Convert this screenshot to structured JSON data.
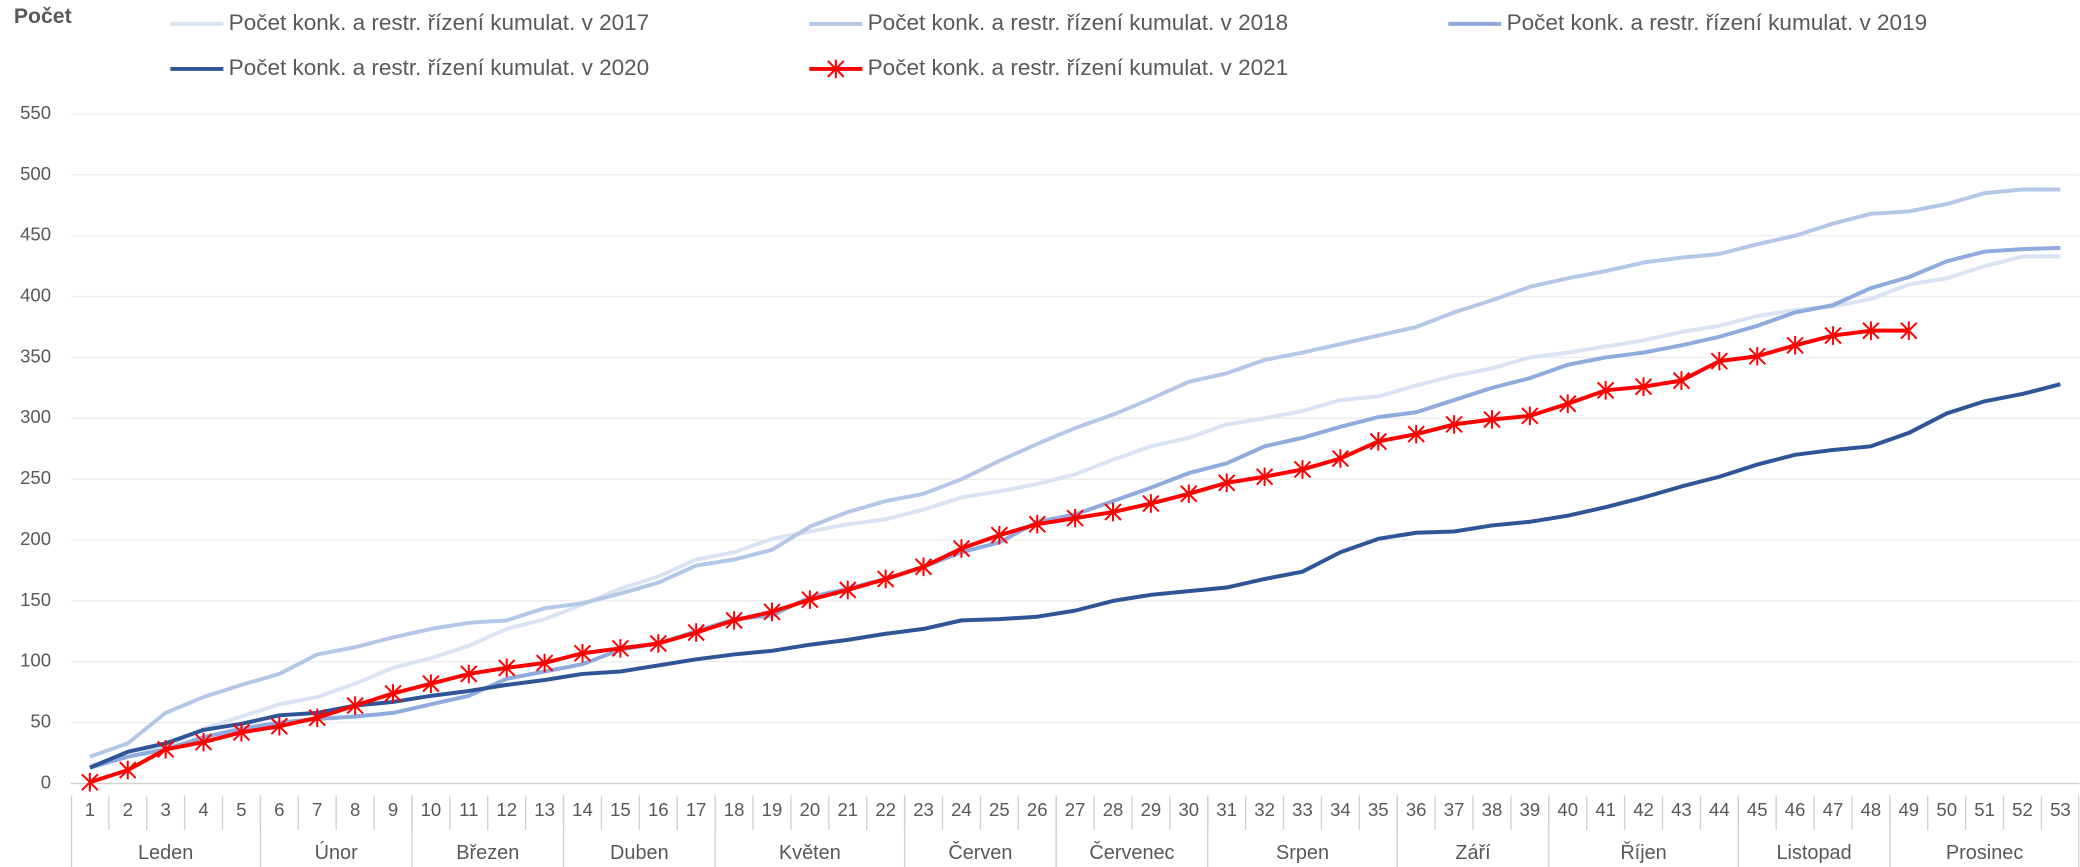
{
  "chart_data": {
    "type": "line",
    "y_axis_label": "Počet",
    "categories": [
      1,
      2,
      3,
      4,
      5,
      6,
      7,
      8,
      9,
      10,
      11,
      12,
      13,
      14,
      15,
      16,
      17,
      18,
      19,
      20,
      21,
      22,
      23,
      24,
      25,
      26,
      27,
      28,
      29,
      30,
      31,
      32,
      33,
      34,
      35,
      36,
      37,
      38,
      39,
      40,
      41,
      42,
      43,
      44,
      45,
      46,
      47,
      48,
      49,
      50,
      51,
      52,
      53
    ],
    "x_groups": [
      {
        "label": "Leden",
        "span": 5
      },
      {
        "label": "Únor",
        "span": 4
      },
      {
        "label": "Březen",
        "span": 4
      },
      {
        "label": "Duben",
        "span": 4
      },
      {
        "label": "Květen",
        "span": 5
      },
      {
        "label": "Červen",
        "span": 4
      },
      {
        "label": "Červenec",
        "span": 4
      },
      {
        "label": "Srpen",
        "span": 5
      },
      {
        "label": "Září",
        "span": 4
      },
      {
        "label": "Říjen",
        "span": 5
      },
      {
        "label": "Listopad",
        "span": 4
      },
      {
        "label": "Prosinec",
        "span": 5
      }
    ],
    "ylim": [
      0,
      550
    ],
    "yticks": [
      0,
      50,
      100,
      150,
      200,
      250,
      300,
      350,
      400,
      450,
      500,
      550
    ],
    "grid": true,
    "legend": "top",
    "series": [
      {
        "name": "Počet konk. a restr. řízení kumulat. v 2017",
        "color": "#dae3f3",
        "values": [
          15,
          22,
          30,
          45,
          55,
          65,
          71,
          82,
          95,
          103,
          113,
          127,
          135,
          147,
          160,
          170,
          184,
          190,
          201,
          207,
          213,
          217,
          225,
          235,
          240,
          246,
          254,
          266,
          277,
          284,
          295,
          300,
          306,
          315,
          318,
          327,
          335,
          341,
          350,
          354,
          359,
          364,
          371,
          376,
          384,
          389,
          392,
          398,
          410,
          415,
          425,
          433,
          433
        ]
      },
      {
        "name": "Počet konk. a restr. řízení kumulat. v 2018",
        "color": "#b4c7e7",
        "values": [
          22,
          33,
          58,
          71,
          81,
          90,
          106,
          112,
          120,
          127,
          132,
          134,
          144,
          148,
          156,
          165,
          179,
          184,
          192,
          211,
          223,
          232,
          238,
          250,
          265,
          279,
          292,
          303,
          316,
          330,
          337,
          348,
          354,
          361,
          368,
          375,
          387,
          397,
          408,
          415,
          421,
          428,
          432,
          435,
          443,
          450,
          460,
          468,
          470,
          476,
          485,
          488,
          488
        ]
      },
      {
        "name": "Počet konk. a restr. řízení kumulat. v 2019",
        "color": "#8faadc",
        "values": [
          13,
          22,
          28,
          38,
          45,
          50,
          53,
          55,
          58,
          65,
          72,
          86,
          92,
          98,
          110,
          115,
          125,
          135,
          138,
          153,
          160,
          168,
          178,
          190,
          198,
          215,
          221,
          232,
          243,
          255,
          263,
          277,
          284,
          293,
          301,
          305,
          315,
          325,
          333,
          344,
          350,
          354,
          360,
          367,
          376,
          387,
          393,
          407,
          416,
          429,
          437,
          439,
          440
        ]
      },
      {
        "name": "Počet konk. a restr. řízení kumulat. v 2020",
        "color": "#2f5597",
        "values": [
          13,
          26,
          33,
          44,
          49,
          56,
          58,
          64,
          67,
          72,
          76,
          81,
          85,
          90,
          92,
          97,
          102,
          106,
          109,
          114,
          118,
          123,
          127,
          134,
          135,
          137,
          142,
          150,
          155,
          158,
          161,
          168,
          174,
          190,
          201,
          206,
          207,
          212,
          215,
          220,
          227,
          235,
          244,
          252,
          262,
          270,
          274,
          277,
          288,
          304,
          314,
          320,
          328
        ]
      },
      {
        "name": "Počet konk. a restr. řízení kumulat. v 2021",
        "color": "#ff0000",
        "marker": "asterisk",
        "values": [
          1,
          11,
          28,
          34,
          42,
          47,
          54,
          64,
          74,
          82,
          90,
          95,
          99,
          107,
          111,
          115,
          124,
          134,
          141,
          151,
          159,
          168,
          178,
          193,
          204,
          213,
          218,
          223,
          230,
          238,
          247,
          252,
          258,
          267,
          281,
          287,
          295,
          299,
          302,
          312,
          323,
          326,
          331,
          347,
          351,
          360,
          368,
          372,
          372,
          null,
          null,
          null,
          null
        ]
      }
    ]
  }
}
